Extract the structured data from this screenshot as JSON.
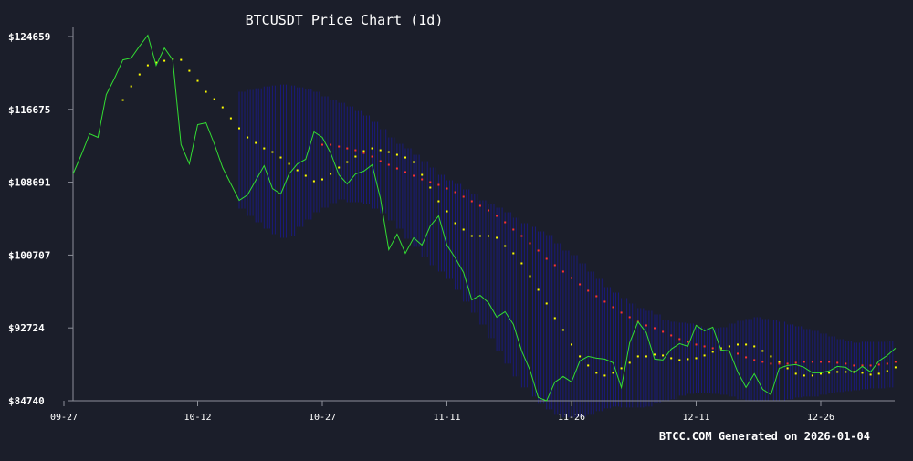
{
  "chart_data": {
    "type": "line",
    "title": "BTCUSDT Price Chart (1d)",
    "footer": "BTCC.COM Generated on 2026-01-04",
    "xlabel": "",
    "ylabel": "",
    "x_ticks": [
      "09-27",
      "10-12",
      "10-27",
      "11-11",
      "11-26",
      "12-11",
      "12-26"
    ],
    "x_tick_days": [
      0,
      15,
      30,
      45,
      60,
      75,
      90
    ],
    "y_ticks": [
      "$124659",
      "$116675",
      "$108691",
      "$100707",
      "$92724",
      "$84740"
    ],
    "y_tick_values": [
      124659,
      116675,
      108691,
      100707,
      92724,
      84740
    ],
    "ylim": [
      84740,
      124659
    ],
    "xlim": [
      0,
      99
    ],
    "grid": false,
    "legend": "none",
    "colors": {
      "background": "#1b1e2a",
      "price": "#33dd33",
      "ma_short": "#ffff00",
      "ma_long": "#ff3333",
      "band": "#1a1a7a",
      "axis": "#8c8f99",
      "text": "#ffffff"
    },
    "series": [
      {
        "values": [
          109600,
          111700,
          114000,
          113600,
          118300,
          120100,
          122100,
          122300,
          123600,
          124800,
          121500,
          123400,
          122100,
          112800,
          110700,
          115000,
          115200,
          112900,
          110300,
          108500,
          106700,
          107300,
          108900,
          110500,
          108000,
          107400,
          109600,
          110700,
          111200,
          114200,
          113600,
          111900,
          109500,
          108500,
          109600,
          109900,
          110600,
          106900,
          101300,
          103000,
          100900,
          102600,
          101800,
          103900,
          105000,
          101800,
          100400,
          98800,
          95800,
          96300,
          95500,
          93900,
          94500,
          93100,
          90200,
          88100,
          85100,
          84740,
          86800,
          87400,
          86800,
          89100,
          89600,
          89400,
          89300,
          88900,
          86200,
          91100,
          93400,
          92200,
          89300,
          89200,
          90400,
          91000,
          90700,
          93000,
          92400,
          92800,
          90300,
          90200,
          87900,
          86200,
          87700,
          86000,
          85400,
          88300,
          88600,
          88700,
          88400,
          87800,
          87800,
          88000,
          88500,
          88400,
          87800,
          88500,
          87900,
          89100,
          89700,
          90500
        ]
      },
      {
        "start": 6,
        "values": [
          117700,
          119200,
          120500,
          121500,
          121800,
          122000,
          122200,
          122100,
          120900,
          119800,
          118600,
          117800,
          116900,
          115700,
          114600,
          113600,
          113000,
          112400,
          112000,
          111400,
          110700,
          110000,
          109400,
          108800,
          109000,
          109600,
          110300,
          110900,
          111500,
          112100,
          112400,
          112200,
          112000,
          111700,
          111400,
          110900,
          109500,
          108100,
          106600,
          105500,
          104200,
          103500,
          102800,
          102800,
          102800,
          102600,
          101700,
          100900,
          99800,
          98400,
          96900,
          95400,
          93800,
          92500,
          90900,
          89600,
          88600,
          87800,
          87500,
          87800,
          88300,
          88900,
          89600,
          89600,
          89800,
          89700,
          89400,
          89200,
          89300,
          89400,
          89700,
          90100,
          90500,
          90700,
          90900,
          90900,
          90700,
          90200,
          89600,
          89000,
          88300,
          87700,
          87500,
          87500,
          87700,
          87800,
          87900,
          87900,
          87900,
          87800,
          87600,
          87700,
          88000,
          88400
        ]
      },
      {
        "start": 30,
        "values": [
          112800,
          112800,
          112600,
          112400,
          112200,
          111900,
          111500,
          111000,
          110600,
          110200,
          109800,
          109400,
          109000,
          108700,
          108400,
          108000,
          107600,
          107100,
          106600,
          106100,
          105600,
          105000,
          104300,
          103500,
          102800,
          102000,
          101200,
          100300,
          99600,
          98900,
          98200,
          97500,
          96800,
          96200,
          95600,
          95000,
          94400,
          93900,
          93400,
          93000,
          92700,
          92300,
          91900,
          91500,
          91200,
          90900,
          90700,
          90500,
          90300,
          90100,
          89900,
          89500,
          89200,
          89000,
          88800,
          88800,
          88800,
          88900,
          89000,
          89000,
          89000,
          89000,
          88900,
          88800,
          88600,
          88600,
          88600,
          88700,
          88800,
          89000
        ]
      }
    ],
    "band": {
      "start": 20,
      "upper": [
        118600,
        118800,
        119000,
        119200,
        119300,
        119400,
        119300,
        119100,
        118900,
        118600,
        118100,
        117700,
        117400,
        117000,
        116500,
        116000,
        115300,
        114500,
        113600,
        112900,
        112400,
        111700,
        111000,
        110300,
        109500,
        108900,
        108500,
        107900,
        107400,
        106700,
        106300,
        105900,
        105400,
        104800,
        104200,
        103800,
        103300,
        102900,
        102000,
        101200,
        100700,
        99800,
        98900,
        98100,
        97200,
        96600,
        96000,
        95400,
        94900,
        94600,
        94200,
        93600,
        93400,
        93300,
        93200,
        92900,
        92700,
        92700,
        92800,
        93200,
        93500,
        93700,
        93900,
        93700,
        93600,
        93400,
        93100,
        92900,
        92600,
        92400,
        92100,
        91800,
        91500,
        91300,
        91100,
        91200,
        91200,
        91200,
        91300,
        91300
      ],
      "lower": [
        105800,
        105000,
        104300,
        103600,
        103000,
        102600,
        102800,
        103800,
        104600,
        105400,
        105900,
        106400,
        106800,
        106500,
        106500,
        106300,
        105800,
        105300,
        104500,
        103600,
        102500,
        101600,
        100500,
        99600,
        98900,
        98100,
        96900,
        95600,
        94400,
        93100,
        91600,
        90200,
        88800,
        87400,
        86200,
        85200,
        84400,
        83800,
        83200,
        82900,
        82900,
        83000,
        83200,
        83600,
        83900,
        84100,
        84000,
        84000,
        84000,
        84100,
        84500,
        84700,
        84900,
        85300,
        85500,
        85600,
        85600,
        85500,
        85400,
        85200,
        84900,
        84800,
        84700,
        84700,
        84700,
        84700,
        84900,
        85100,
        85200,
        85200,
        85400,
        85600,
        85700,
        85800,
        85900,
        86000,
        86100,
        86100,
        86200,
        86400
      ]
    }
  }
}
